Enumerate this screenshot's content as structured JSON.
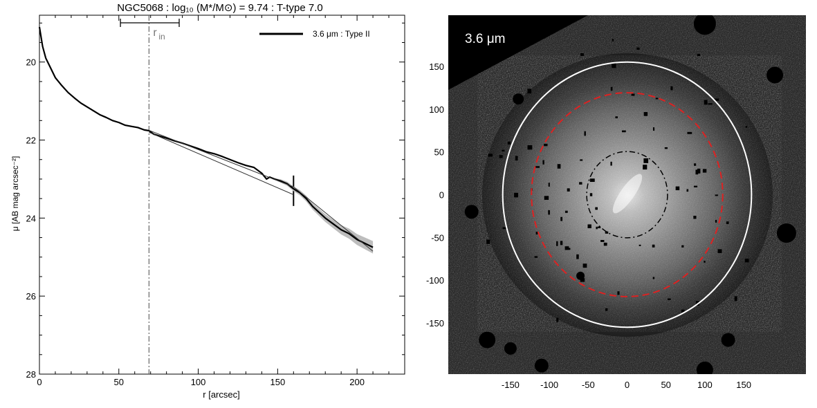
{
  "chart_data": [
    {
      "type": "line",
      "title": "NGC5068 : log₁₀ (M*/M⊙) = 9.74 : T-type 7.0",
      "xlabel": "r [arcsec]",
      "ylabel": "μ [AB mag arcsec⁻²]",
      "xlim": [
        0,
        230
      ],
      "ylim": [
        28,
        18.8
      ],
      "y_inverted": true,
      "xticks": [
        0,
        50,
        100,
        150,
        200
      ],
      "yticks": [
        20,
        22,
        24,
        26,
        28
      ],
      "grid": false,
      "legend_position": "top-right",
      "legend": [
        {
          "label": "3.6 μm : Type II",
          "color": "#000000"
        }
      ],
      "annotations": {
        "r_in_label": "r",
        "r_in_subscript": "in",
        "r_in_value": 69,
        "r_in_range": [
          51,
          88
        ],
        "break_radius": 160,
        "break_mu": 23.3
      },
      "series": [
        {
          "type": "profile",
          "color": "#000000",
          "x": [
            0,
            2,
            4,
            7,
            10,
            14,
            18,
            22,
            26,
            30,
            34,
            38,
            42,
            46,
            50,
            54,
            58,
            62,
            66,
            69,
            72,
            76,
            80,
            85,
            90,
            95,
            100,
            105,
            110,
            115,
            120,
            125,
            130,
            135,
            140,
            143,
            145,
            148,
            152,
            156,
            160,
            164,
            168,
            172,
            176,
            180,
            185,
            190,
            195,
            200,
            205,
            210
          ],
          "y": [
            19.1,
            19.6,
            19.9,
            20.15,
            20.4,
            20.6,
            20.78,
            20.92,
            21.05,
            21.15,
            21.25,
            21.35,
            21.42,
            21.5,
            21.55,
            21.62,
            21.65,
            21.68,
            21.74,
            21.76,
            21.85,
            21.9,
            21.95,
            22.02,
            22.08,
            22.15,
            22.22,
            22.3,
            22.35,
            22.42,
            22.5,
            22.58,
            22.65,
            22.7,
            22.85,
            23.0,
            22.95,
            23.0,
            23.05,
            23.12,
            23.25,
            23.35,
            23.5,
            23.7,
            23.85,
            24.0,
            24.15,
            24.3,
            24.4,
            24.55,
            24.65,
            24.75
          ]
        },
        {
          "type": "fit-inner",
          "color": "#333333",
          "x": [
            69,
            160
          ],
          "y": [
            21.75,
            23.2
          ]
        },
        {
          "type": "fit-outer",
          "color": "#333333",
          "x": [
            160,
            210
          ],
          "y": [
            23.2,
            24.85
          ]
        },
        {
          "type": "fit-inner-extended",
          "color": "#333333",
          "x": [
            69,
            160
          ],
          "y": [
            21.8,
            23.4
          ]
        }
      ]
    },
    {
      "type": "image",
      "band_label": "3.6 μm",
      "xticks": [
        -150,
        -100,
        -50,
        0,
        50,
        100,
        150
      ],
      "yticks": [
        150,
        100,
        50,
        0,
        -50,
        -100,
        -150
      ],
      "xlim": [
        -230,
        230
      ],
      "ylim": [
        -210,
        210
      ],
      "circles": [
        {
          "radius": 160,
          "style": "solid",
          "color": "#ffffff"
        },
        {
          "radius": 123,
          "style": "dashed",
          "color": "#dd2222"
        },
        {
          "radius": 52,
          "style": "dash-dot",
          "color": "#000000"
        }
      ],
      "ellipse_ratio": 0.97
    }
  ]
}
